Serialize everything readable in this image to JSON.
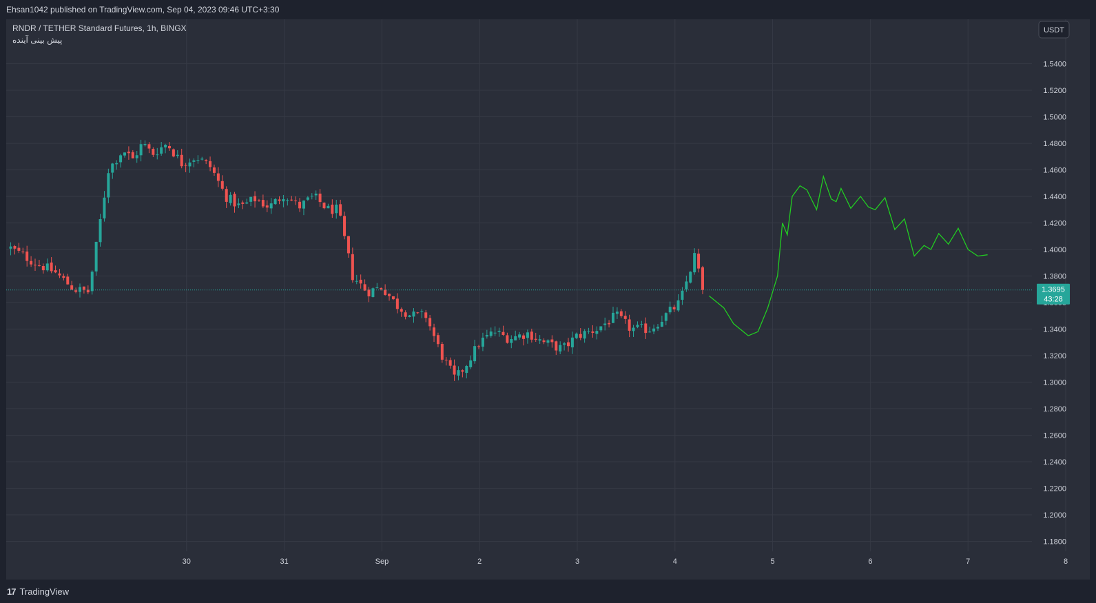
{
  "header": {
    "published_text": "Ehsan1042 published on TradingView.com, Sep 04, 2023 09:46 UTC+3:30"
  },
  "legend": {
    "symbol_line": "RNDR / TETHER Standard Futures, 1h, BINGX",
    "indicator_line": "پیش بینی آینده"
  },
  "currency_button": "USDT",
  "price_tag": {
    "price": "1.3695",
    "countdown": "43:28"
  },
  "footer": {
    "brand": "TradingView",
    "logo_glyph": "17"
  },
  "colors": {
    "background": "#2a2e39",
    "up": "#26a69a",
    "down": "#ef5350",
    "forecast": "#22cc22",
    "grid": "#363a45",
    "text": "#d1d4dc"
  },
  "chart_data": {
    "type": "candlestick",
    "ylim": [
      1.17,
      1.5635
    ],
    "y_ticks": [
      "1.1800",
      "1.2000",
      "1.2200",
      "1.2400",
      "1.2600",
      "1.2800",
      "1.3000",
      "1.3200",
      "1.3400",
      "1.3600",
      "1.3800",
      "1.4000",
      "1.4200",
      "1.4400",
      "1.4600",
      "1.4800",
      "1.5000",
      "1.5200",
      "1.5400"
    ],
    "x_range": [
      -0.8,
      10.05
    ],
    "x_ticks": [
      {
        "x": 1,
        "label": "30"
      },
      {
        "x": 2,
        "label": "31"
      },
      {
        "x": 3,
        "label": "Sep"
      },
      {
        "x": 4,
        "label": "2"
      },
      {
        "x": 5,
        "label": "3"
      },
      {
        "x": 6,
        "label": "4"
      },
      {
        "x": 7,
        "label": "5"
      },
      {
        "x": 8,
        "label": "6"
      },
      {
        "x": 9,
        "label": "7"
      },
      {
        "x": 10,
        "label": "8"
      }
    ],
    "last_price": 1.3695,
    "close_series": {
      "x": [
        -0.8,
        -0.55,
        -0.35,
        -0.15,
        0,
        0.2,
        0.35,
        0.45,
        0.55,
        0.65,
        0.8,
        0.95,
        1.1,
        1.25,
        1.4,
        1.55,
        1.7,
        1.85,
        2.0,
        2.15,
        2.3,
        2.45,
        2.55,
        2.7,
        2.85,
        3.0,
        3.15,
        3.3,
        3.45,
        3.6,
        3.75,
        3.85,
        4.0,
        4.15,
        4.3,
        4.5,
        4.65,
        4.85,
        5.0,
        5.2,
        5.4,
        5.55,
        5.75,
        5.9,
        6.05,
        6.2,
        6.3
      ],
      "close": [
        1.401,
        1.39,
        1.383,
        1.37,
        1.368,
        1.46,
        1.475,
        1.468,
        1.48,
        1.472,
        1.48,
        1.465,
        1.47,
        1.462,
        1.44,
        1.432,
        1.438,
        1.432,
        1.442,
        1.432,
        1.44,
        1.43,
        1.43,
        1.38,
        1.368,
        1.372,
        1.358,
        1.35,
        1.35,
        1.322,
        1.302,
        1.312,
        1.33,
        1.338,
        1.333,
        1.337,
        1.33,
        1.325,
        1.335,
        1.34,
        1.35,
        1.34,
        1.34,
        1.35,
        1.36,
        1.395,
        1.3695
      ]
    },
    "series": [
      {
        "name": "پیش بینی آینده",
        "type": "line",
        "x": [
          6.35,
          6.5,
          6.6,
          6.75,
          6.85,
          6.95,
          7.05,
          7.1,
          7.15,
          7.2,
          7.28,
          7.35,
          7.45,
          7.52,
          7.6,
          7.65,
          7.7,
          7.8,
          7.9,
          7.98,
          8.05,
          8.15,
          8.25,
          8.35,
          8.45,
          8.55,
          8.62,
          8.7,
          8.8,
          8.9,
          9.0,
          9.1,
          9.2
        ],
        "y": [
          1.365,
          1.356,
          1.344,
          1.335,
          1.338,
          1.356,
          1.38,
          1.42,
          1.411,
          1.44,
          1.448,
          1.445,
          1.43,
          1.455,
          1.438,
          1.436,
          1.446,
          1.431,
          1.44,
          1.432,
          1.43,
          1.439,
          1.415,
          1.423,
          1.395,
          1.403,
          1.4,
          1.412,
          1.404,
          1.416,
          1.4,
          1.395,
          1.396
        ]
      }
    ]
  }
}
